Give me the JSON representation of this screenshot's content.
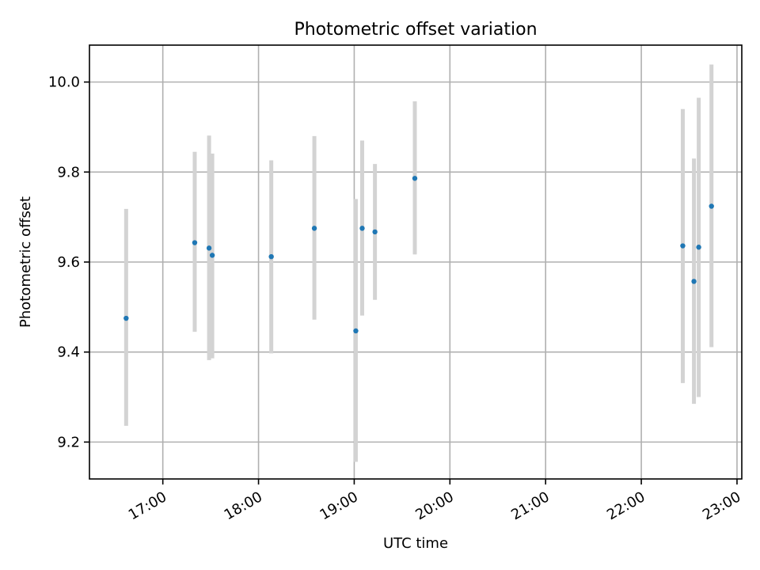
{
  "chart_data": {
    "type": "scatter",
    "title": "Photometric offset variation",
    "xlabel": "UTC time",
    "ylabel": "Photometric offset",
    "xlim": [
      "16:14",
      "23:03"
    ],
    "ylim": [
      9.118,
      10.082
    ],
    "x_ticks": [
      "17:00",
      "18:00",
      "19:00",
      "20:00",
      "21:00",
      "22:00",
      "23:00"
    ],
    "y_ticks": [
      9.2,
      9.4,
      9.6,
      9.8,
      10.0
    ],
    "y_tick_labels": [
      "9.2",
      "9.4",
      "9.6",
      "9.8",
      "10.0"
    ],
    "grid": true,
    "colors": {
      "point": "#1f77b4",
      "error_bar": "#d3d3d3",
      "grid": "#b0b0b0"
    },
    "points": [
      {
        "x": "16:37",
        "y": 9.475,
        "y_low": 9.236,
        "y_high": 9.718
      },
      {
        "x": "17:20",
        "y": 9.643,
        "y_low": 9.445,
        "y_high": 9.845
      },
      {
        "x": "17:29",
        "y": 9.631,
        "y_low": 9.382,
        "y_high": 9.881
      },
      {
        "x": "17:31",
        "y": 9.615,
        "y_low": 9.386,
        "y_high": 9.841
      },
      {
        "x": "18:08",
        "y": 9.612,
        "y_low": 9.397,
        "y_high": 9.826
      },
      {
        "x": "18:35",
        "y": 9.675,
        "y_low": 9.472,
        "y_high": 9.88
      },
      {
        "x": "19:01",
        "y": 9.447,
        "y_low": 9.156,
        "y_high": 9.74
      },
      {
        "x": "19:05",
        "y": 9.675,
        "y_low": 9.481,
        "y_high": 9.87
      },
      {
        "x": "19:13",
        "y": 9.667,
        "y_low": 9.516,
        "y_high": 9.818
      },
      {
        "x": "19:38",
        "y": 9.786,
        "y_low": 9.617,
        "y_high": 9.957
      },
      {
        "x": "22:26",
        "y": 9.636,
        "y_low": 9.331,
        "y_high": 9.94
      },
      {
        "x": "22:33",
        "y": 9.557,
        "y_low": 9.285,
        "y_high": 9.83
      },
      {
        "x": "22:36",
        "y": 9.633,
        "y_low": 9.3,
        "y_high": 9.965
      },
      {
        "x": "22:44",
        "y": 9.724,
        "y_low": 9.411,
        "y_high": 10.039
      }
    ]
  }
}
